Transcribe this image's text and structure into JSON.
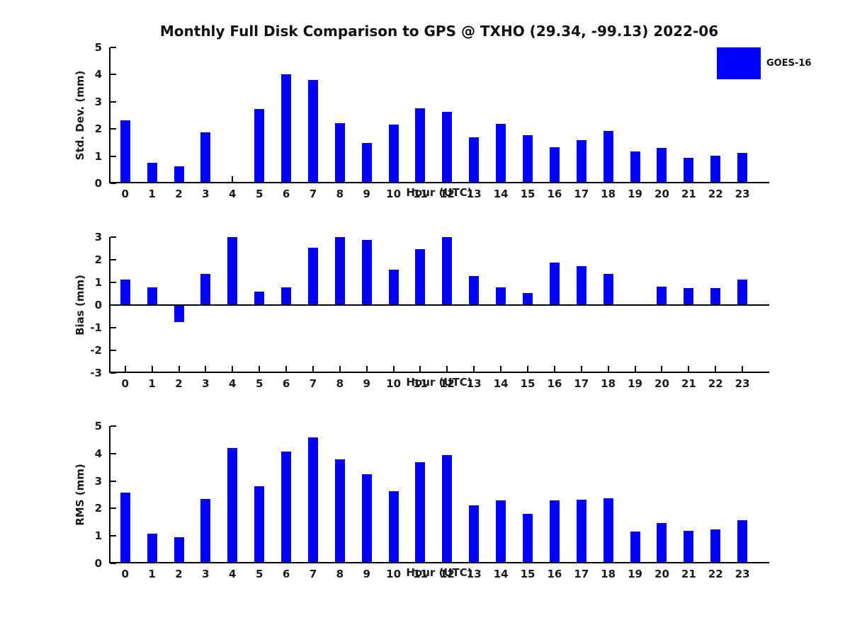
{
  "title": "Monthly Full Disk Comparison to GPS @ TXHO (29.34, -99.13) 2022-06",
  "legend": {
    "label": "GOES-16",
    "color": "#0000FF",
    "position": "top-right"
  },
  "colors": {
    "bar": "#0000FF",
    "axis": "#000000",
    "background": "#FFFFFF",
    "text": "#1a1a1a"
  },
  "chart_data": [
    {
      "type": "bar",
      "ylabel": "Std. Dev. (mm)",
      "xlabel": "Hour (UTC)",
      "series_name": "GOES-16",
      "categories": [
        "0",
        "1",
        "2",
        "3",
        "4",
        "5",
        "6",
        "7",
        "8",
        "9",
        "10",
        "11",
        "12",
        "13",
        "14",
        "15",
        "16",
        "17",
        "18",
        "19",
        "20",
        "21",
        "22",
        "23"
      ],
      "values": [
        2.33,
        0.75,
        0.62,
        1.88,
        0.0,
        2.74,
        4.01,
        3.8,
        2.21,
        1.48,
        2.16,
        2.77,
        2.63,
        1.7,
        2.19,
        1.76,
        1.34,
        1.58,
        1.93,
        1.17,
        1.29,
        0.94,
        1.02,
        1.13
      ],
      "ylim": [
        0,
        5
      ],
      "yticks": [
        0,
        1,
        2,
        3,
        4,
        5
      ],
      "grid": false,
      "bar_color": "#0000FF"
    },
    {
      "type": "bar",
      "ylabel": "Bias (mm)",
      "xlabel": "Hour (UTC)",
      "series_name": "GOES-16",
      "categories": [
        "0",
        "1",
        "2",
        "3",
        "4",
        "5",
        "6",
        "7",
        "8",
        "9",
        "10",
        "11",
        "12",
        "13",
        "14",
        "15",
        "16",
        "17",
        "18",
        "19",
        "20",
        "21",
        "22",
        "23"
      ],
      "values": [
        1.13,
        0.78,
        -0.76,
        1.37,
        3.0,
        0.58,
        0.78,
        2.54,
        3.0,
        2.89,
        1.57,
        2.46,
        3.0,
        1.29,
        0.77,
        0.52,
        1.87,
        1.72,
        1.38,
        0.04,
        0.82,
        0.75,
        0.75,
        1.11
      ],
      "ylim": [
        -3,
        3
      ],
      "yticks": [
        -3,
        -2,
        -1,
        0,
        1,
        2,
        3
      ],
      "grid": false,
      "bar_color": "#0000FF"
    },
    {
      "type": "bar",
      "ylabel": "RMS (mm)",
      "xlabel": "Hour (UTC)",
      "series_name": "GOES-16",
      "categories": [
        "0",
        "1",
        "2",
        "3",
        "4",
        "5",
        "6",
        "7",
        "8",
        "9",
        "10",
        "11",
        "12",
        "13",
        "14",
        "15",
        "16",
        "17",
        "18",
        "19",
        "20",
        "21",
        "22",
        "23"
      ],
      "values": [
        2.57,
        1.08,
        0.96,
        2.34,
        4.21,
        2.81,
        4.08,
        4.58,
        3.78,
        3.25,
        2.64,
        3.68,
        3.94,
        2.11,
        2.3,
        1.8,
        2.3,
        2.32,
        2.36,
        1.16,
        1.47,
        1.19,
        1.24,
        1.56
      ],
      "ylim": [
        0,
        5
      ],
      "yticks": [
        0,
        1,
        2,
        3,
        4,
        5
      ],
      "grid": false,
      "bar_color": "#0000FF"
    }
  ]
}
